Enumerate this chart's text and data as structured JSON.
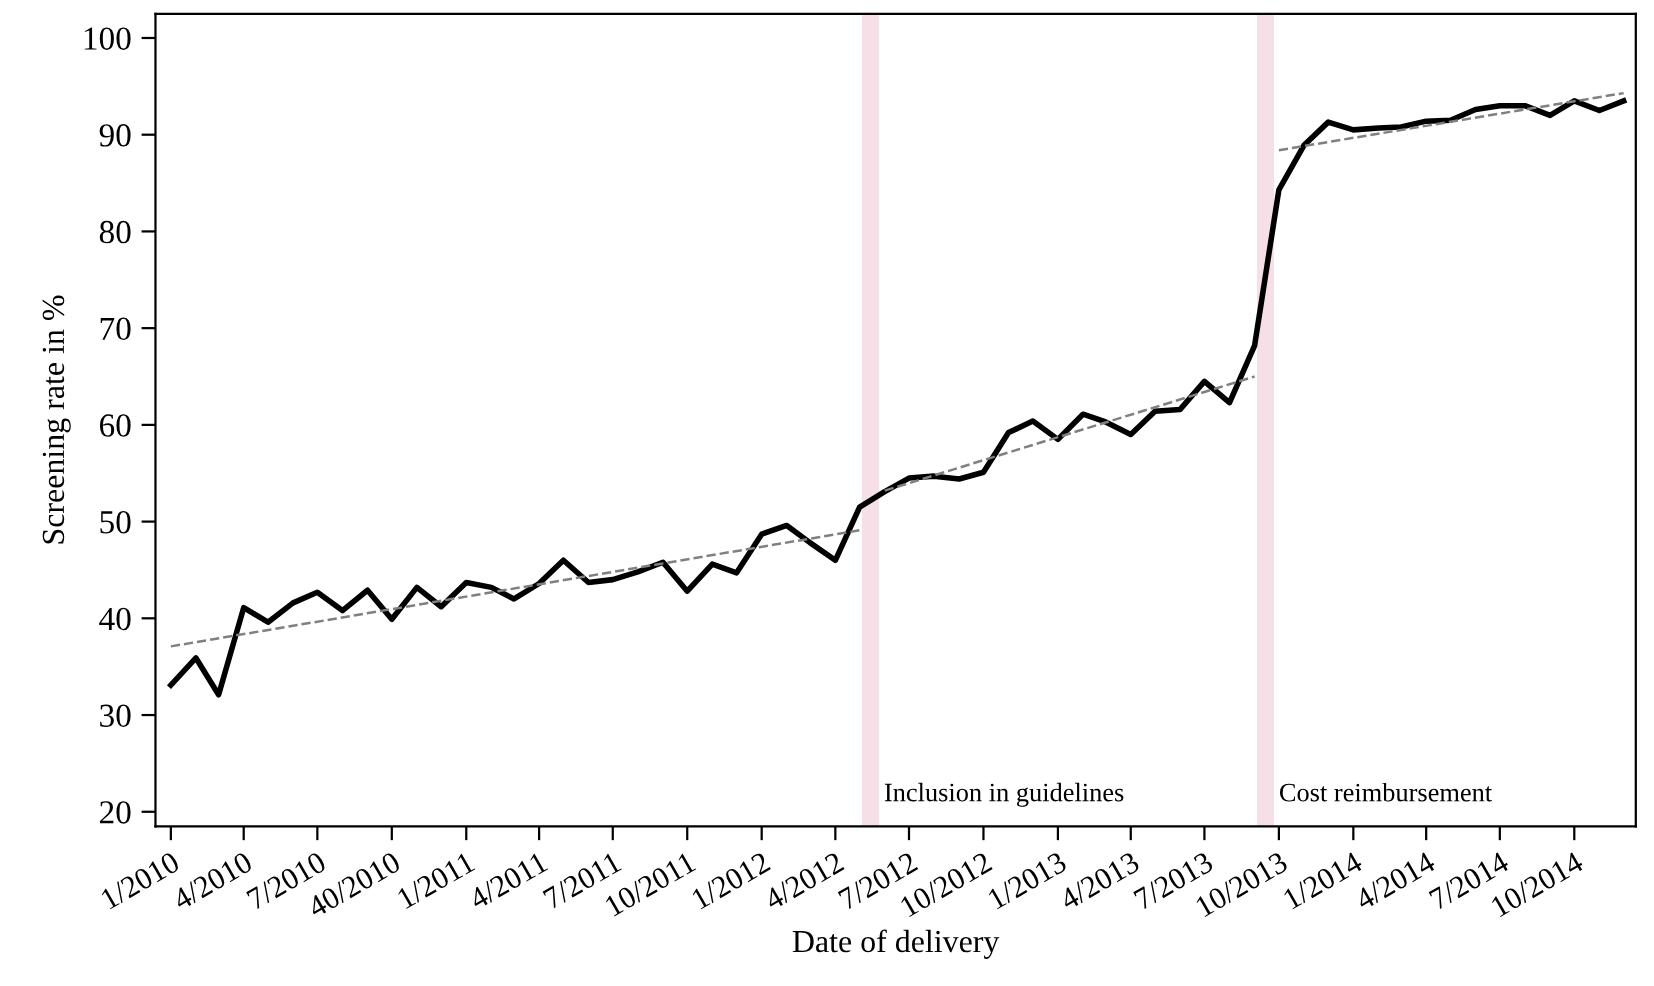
{
  "chart_data": {
    "type": "line",
    "xlabel": "Date of delivery",
    "ylabel": "Screening rate in %",
    "xlim": [
      "2009-12-13",
      "2014-12-16"
    ],
    "ylim": [
      18.5,
      102.5
    ],
    "xticks": [
      {
        "value": "2010-01",
        "label": "1/2010"
      },
      {
        "value": "2010-04",
        "label": "4/2010"
      },
      {
        "value": "2010-07",
        "label": "7/2010"
      },
      {
        "value": "2010-10",
        "label": "40/2010"
      },
      {
        "value": "2011-01",
        "label": "1/2011"
      },
      {
        "value": "2011-04",
        "label": "4/2011"
      },
      {
        "value": "2011-07",
        "label": "7/2011"
      },
      {
        "value": "2011-10",
        "label": "10/2011"
      },
      {
        "value": "2012-01",
        "label": "1/2012"
      },
      {
        "value": "2012-04",
        "label": "4/2012"
      },
      {
        "value": "2012-07",
        "label": "7/2012"
      },
      {
        "value": "2012-10",
        "label": "10/2012"
      },
      {
        "value": "2013-01",
        "label": "1/2013"
      },
      {
        "value": "2013-04",
        "label": "4/2013"
      },
      {
        "value": "2013-07",
        "label": "7/2013"
      },
      {
        "value": "2013-10",
        "label": "10/2013"
      },
      {
        "value": "2014-01",
        "label": "1/2014"
      },
      {
        "value": "2014-04",
        "label": "4/2014"
      },
      {
        "value": "2014-07",
        "label": "7/2014"
      },
      {
        "value": "2014-10",
        "label": "10/2014"
      }
    ],
    "yticks": [
      20,
      30,
      40,
      50,
      60,
      70,
      80,
      90,
      100
    ],
    "grid": false,
    "legend": false,
    "series": [
      {
        "color": "#000000",
        "line_style": "solid",
        "x": [
          "2010-01",
          "2010-02",
          "2010-03",
          "2010-04",
          "2010-05",
          "2010-06",
          "2010-07",
          "2010-08",
          "2010-09",
          "2010-10",
          "2010-11",
          "2010-12",
          "2011-01",
          "2011-02",
          "2011-03",
          "2011-04",
          "2011-05",
          "2011-06",
          "2011-07",
          "2011-08",
          "2011-09",
          "2011-10",
          "2011-11",
          "2011-12",
          "2012-01",
          "2012-02",
          "2012-03",
          "2012-04",
          "2012-05",
          "2012-06",
          "2012-07",
          "2012-08",
          "2012-09",
          "2012-10",
          "2012-11",
          "2012-12",
          "2013-01",
          "2013-02",
          "2013-03",
          "2013-04",
          "2013-05",
          "2013-06",
          "2013-07",
          "2013-08",
          "2013-09",
          "2013-10",
          "2013-11",
          "2013-12",
          "2014-01",
          "2014-02",
          "2014-03",
          "2014-04",
          "2014-05",
          "2014-06",
          "2014-07",
          "2014-08",
          "2014-09",
          "2014-10",
          "2014-11",
          "2014-12"
        ],
        "values": [
          33.1,
          35.9,
          32.1,
          41.1,
          39.6,
          41.6,
          42.7,
          40.8,
          42.9,
          39.9,
          43.2,
          41.2,
          43.7,
          43.2,
          42.0,
          43.6,
          46.0,
          43.7,
          44.0,
          44.8,
          45.8,
          42.8,
          45.6,
          44.7,
          48.7,
          49.6,
          47.8,
          46.0,
          51.5,
          53.1,
          54.5,
          54.7,
          54.4,
          55.1,
          59.2,
          60.4,
          58.5,
          61.1,
          60.3,
          59.0,
          61.4,
          61.6,
          64.5,
          62.3,
          68.2,
          84.3,
          88.9,
          91.3,
          90.5,
          90.7,
          90.8,
          91.4,
          91.5,
          92.6,
          93.0,
          93.0,
          92.0,
          93.5,
          92.5,
          93.5
        ]
      },
      {
        "color": "#808080",
        "line_style": "dashed",
        "x": [
          "2010-01",
          "2012-05"
        ],
        "values": [
          37.1,
          49.1
        ]
      },
      {
        "color": "#808080",
        "line_style": "dashed",
        "x": [
          "2012-06",
          "2013-09"
        ],
        "values": [
          53.2,
          65.0
        ]
      },
      {
        "color": "#808080",
        "line_style": "dashed",
        "x": [
          "2013-10",
          "2014-12"
        ],
        "values": [
          88.4,
          94.3
        ]
      }
    ],
    "bands": [
      {
        "axis": "x",
        "from": "2012-05-04",
        "to": "2012-05-25",
        "label": "Inclusion in guidelines",
        "color": "#f6dfe6"
      },
      {
        "axis": "x",
        "from": "2013-09-04",
        "to": "2013-09-25",
        "label": "Cost reimbursement",
        "color": "#f6dfe6"
      }
    ]
  }
}
